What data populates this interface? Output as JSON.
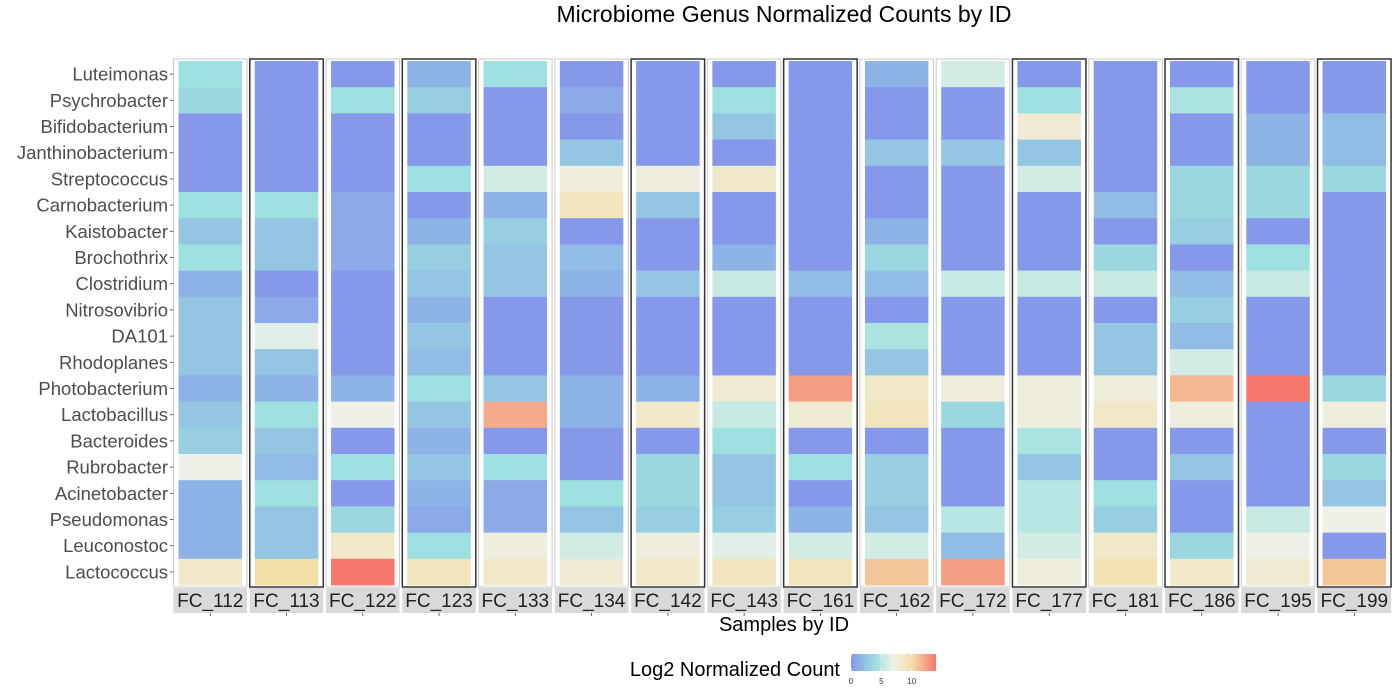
{
  "chart_data": {
    "type": "heatmap",
    "title": "Microbiome Genus Normalized Counts by ID",
    "xlabel": "Samples by ID",
    "ylabel": "",
    "samples": [
      "FC_112",
      "FC_113",
      "FC_122",
      "FC_123",
      "FC_133",
      "FC_134",
      "FC_142",
      "FC_143",
      "FC_161",
      "FC_162",
      "FC_172",
      "FC_177",
      "FC_181",
      "FC_186",
      "FC_195",
      "FC_199"
    ],
    "genera": [
      "Luteimonas",
      "Psychrobacter",
      "Bifidobacterium",
      "Janthinobacterium",
      "Streptococcus",
      "Carnobacterium",
      "Kaistobacter",
      "Brochothrix",
      "Clostridium",
      "Nitrosovibrio",
      "DA101",
      "Rhodoplanes",
      "Photobacterium",
      "Lactobacillus",
      "Bacteroides",
      "Rubrobacter",
      "Acinetobacter",
      "Pseudomonas",
      "Leuconostoc",
      "Lactococcus"
    ],
    "values": [
      [
        4,
        3.5,
        0,
        0,
        0,
        4,
        2.5,
        4,
        1.5,
        2.5,
        2.5,
        2.5,
        1.5,
        2.5,
        3,
        7,
        1.5,
        1.5,
        1.5,
        8.5
      ],
      [
        0,
        0,
        0,
        0,
        0,
        4,
        2.5,
        2.5,
        0,
        1,
        6.5,
        2.5,
        1.5,
        4,
        2.5,
        2,
        4,
        2.5,
        2.5,
        10
      ],
      [
        0,
        4,
        0,
        0,
        0,
        1,
        1,
        1,
        0,
        0,
        0,
        0,
        1.5,
        7,
        0,
        4,
        0,
        3.5,
        8.5,
        14
      ],
      [
        1.5,
        3,
        0,
        0,
        4,
        0,
        1.5,
        3,
        2.5,
        1.5,
        2.5,
        2,
        4,
        2.5,
        1.5,
        2.5,
        1.5,
        1,
        4,
        9
      ],
      [
        4,
        0,
        0,
        0,
        6,
        1.5,
        3,
        2.5,
        2.5,
        0,
        0,
        0,
        2.5,
        12,
        0,
        4,
        1,
        1,
        7.5,
        8.5
      ],
      [
        0,
        1,
        0,
        2.5,
        7.5,
        9,
        0,
        2,
        1.5,
        0,
        0,
        0,
        1.5,
        1.5,
        0,
        0,
        4,
        2.5,
        6,
        8
      ],
      [
        0,
        0,
        0,
        0,
        7.5,
        2.5,
        0,
        0,
        2.5,
        0,
        0,
        0,
        1.5,
        8.5,
        0,
        3.5,
        3.5,
        3,
        7.5,
        8.5
      ],
      [
        0,
        4,
        2.5,
        0,
        8.5,
        0,
        0,
        1.5,
        5.5,
        0,
        0,
        0,
        8,
        5.5,
        4,
        2.5,
        2.5,
        3,
        6.5,
        9
      ],
      [
        0,
        0,
        0,
        0,
        0,
        0,
        0,
        0,
        2,
        0,
        0,
        0,
        12.5,
        8,
        0,
        4,
        0,
        1.5,
        6,
        9
      ],
      [
        1.5,
        0,
        0,
        2.5,
        0,
        0,
        1.5,
        3.5,
        2,
        0,
        4.5,
        2.5,
        8.5,
        9,
        0,
        3,
        3,
        2.5,
        6,
        11
      ],
      [
        6,
        0,
        0,
        2.5,
        0,
        0,
        0,
        0,
        5.5,
        0,
        0,
        0,
        7.5,
        3.5,
        0,
        0,
        0,
        5,
        2,
        12.5
      ],
      [
        0,
        4,
        8,
        2.5,
        6,
        0,
        0,
        0,
        5.5,
        0,
        0,
        0,
        7.5,
        7.5,
        4.5,
        2.5,
        5,
        5,
        6,
        7.5
      ],
      [
        0,
        0,
        0,
        0,
        0,
        2,
        0,
        3.5,
        5.5,
        0,
        2.5,
        2.5,
        7.5,
        8.5,
        0,
        0,
        4,
        3,
        8.5,
        9.5
      ],
      [
        0,
        4.5,
        0,
        0,
        3.5,
        3.5,
        3,
        0,
        2,
        3,
        2,
        6,
        11.5,
        7.5,
        0,
        2.5,
        0,
        0,
        3.5,
        8.5
      ],
      [
        0,
        0,
        1.5,
        1.5,
        3.5,
        3.5,
        0,
        4,
        5.5,
        0,
        0,
        0,
        14,
        0,
        0,
        0,
        0,
        5.5,
        7,
        8
      ],
      [
        0,
        0,
        2,
        2,
        3.5,
        0,
        0,
        0,
        0,
        0,
        0,
        0,
        3.5,
        7.5,
        0,
        3.5,
        2.5,
        7,
        0,
        11
      ]
    ],
    "legend": {
      "title": "Log2 Normalized Count",
      "ticks": [
        "0",
        "5",
        "10"
      ],
      "tick_values": [
        0,
        5,
        10
      ],
      "min": 0,
      "max": 14,
      "colors": [
        "#8598ea",
        "#9de0df",
        "#eef1e8",
        "#f2dfa7",
        "#f7766e"
      ],
      "color_stops": [
        0,
        4,
        7,
        10,
        14
      ]
    },
    "facet_strip_color": "#d9d9d9",
    "facet_border_color": "#333333"
  }
}
